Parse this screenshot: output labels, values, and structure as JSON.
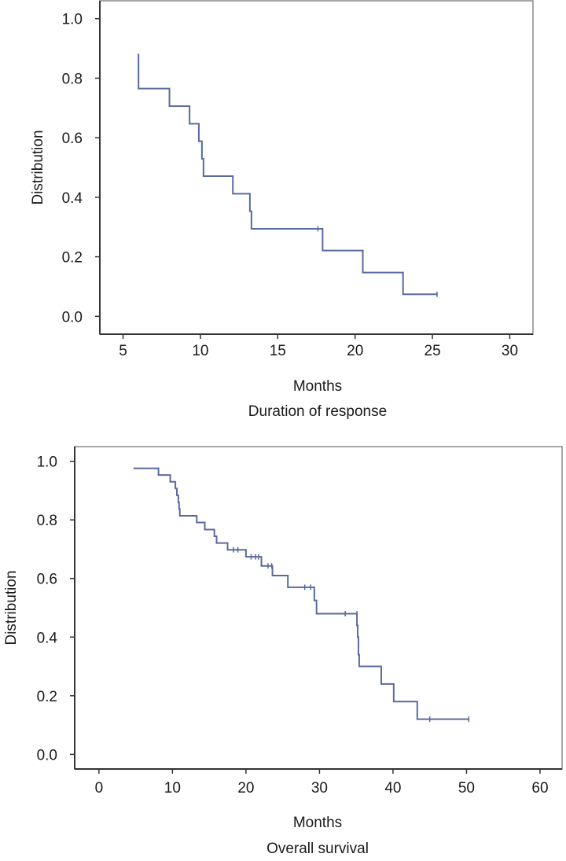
{
  "chart_data": [
    {
      "type": "line",
      "subtype": "kaplan-meier step",
      "title": "Duration of response",
      "xlabel": "Months",
      "ylabel": "Distribution",
      "xlim": [
        3.5,
        31.5
      ],
      "ylim": [
        -0.06,
        1.06
      ],
      "xticks": [
        "5",
        "10",
        "15",
        "20",
        "25",
        "30"
      ],
      "xtick_values": [
        5,
        10,
        15,
        20,
        25,
        30
      ],
      "yticks": [
        "0.0",
        "0.2",
        "0.4",
        "0.6",
        "0.8",
        "1.0"
      ],
      "ytick_values": [
        0,
        0.2,
        0.4,
        0.6,
        0.8,
        1.0
      ],
      "grid": false,
      "color": "#5b6a9e",
      "start": [
        6.0,
        0.882
      ],
      "events": [
        [
          6.0,
          0.765
        ],
        [
          8.0,
          0.706
        ],
        [
          9.3,
          0.647
        ],
        [
          9.9,
          0.588
        ],
        [
          10.1,
          0.529
        ],
        [
          10.2,
          0.471
        ],
        [
          12.1,
          0.412
        ],
        [
          13.2,
          0.353
        ],
        [
          13.3,
          0.294
        ],
        [
          17.9,
          0.221
        ],
        [
          20.5,
          0.147
        ],
        [
          23.1,
          0.074
        ]
      ],
      "censored": [
        17.6,
        25.3
      ],
      "end_time": 25.3
    },
    {
      "type": "line",
      "subtype": "kaplan-meier step",
      "title": "Overall survival",
      "xlabel": "Months",
      "ylabel": "Distribution",
      "xlim": [
        -3.3,
        63
      ],
      "ylim": [
        -0.05,
        1.05
      ],
      "xticks": [
        "0",
        "10",
        "20",
        "30",
        "40",
        "50",
        "60"
      ],
      "xtick_values": [
        0,
        10,
        20,
        30,
        40,
        50,
        60
      ],
      "yticks": [
        "0.0",
        "0.2",
        "0.4",
        "0.6",
        "0.8",
        "1.0"
      ],
      "ytick_values": [
        0,
        0.2,
        0.4,
        0.6,
        0.8,
        1.0
      ],
      "grid": false,
      "color": "#5b6a9e",
      "start": [
        4.7,
        0.976
      ],
      "events": [
        [
          8.1,
          0.953
        ],
        [
          9.7,
          0.93
        ],
        [
          10.4,
          0.907
        ],
        [
          10.6,
          0.884
        ],
        [
          10.8,
          0.86
        ],
        [
          10.9,
          0.837
        ],
        [
          11.0,
          0.814
        ],
        [
          13.3,
          0.791
        ],
        [
          14.4,
          0.767
        ],
        [
          15.7,
          0.744
        ],
        [
          16.0,
          0.721
        ],
        [
          17.5,
          0.698
        ],
        [
          20.0,
          0.674
        ],
        [
          22.1,
          0.643
        ],
        [
          23.6,
          0.61
        ],
        [
          25.7,
          0.57
        ],
        [
          29.3,
          0.525
        ],
        [
          29.6,
          0.48
        ],
        [
          35.1,
          0.44
        ],
        [
          35.2,
          0.4
        ],
        [
          35.3,
          0.34
        ],
        [
          35.4,
          0.3
        ],
        [
          38.4,
          0.24
        ],
        [
          40.1,
          0.18
        ],
        [
          43.3,
          0.12
        ]
      ],
      "censored": [
        18.3,
        18.9,
        20.7,
        21.3,
        21.7,
        23.0,
        23.5,
        28.0,
        28.8,
        33.5,
        35.1,
        45.0,
        50.3
      ],
      "end_time": 50.3
    }
  ]
}
